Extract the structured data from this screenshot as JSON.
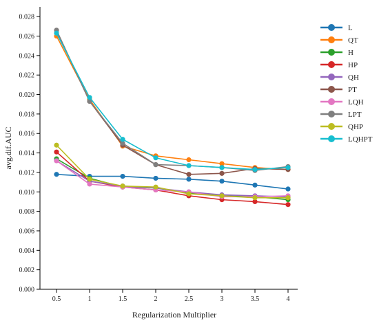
{
  "chart_data": {
    "type": "line",
    "title": "",
    "xlabel": "Regularization Multiplier",
    "ylabel": "avg.dif.AUC",
    "categories": [
      "0.5",
      "1",
      "1.5",
      "2",
      "2.5",
      "3",
      "3.5",
      "4"
    ],
    "ylim": [
      0,
      0.029
    ],
    "yticks": [
      "0.000",
      "0.002",
      "0.004",
      "0.006",
      "0.008",
      "0.010",
      "0.012",
      "0.014",
      "0.016",
      "0.018",
      "0.020",
      "0.022",
      "0.024",
      "0.026",
      "0.028"
    ],
    "grid": false,
    "legend_position": "right",
    "series": [
      {
        "name": "L",
        "color": "#1f77b4",
        "values": [
          0.0118,
          0.0116,
          0.0116,
          0.0114,
          0.0113,
          0.0111,
          0.0107,
          0.0103
        ]
      },
      {
        "name": "QT",
        "color": "#ff7f0e",
        "values": [
          0.026,
          0.0195,
          0.0147,
          0.0137,
          0.0133,
          0.0129,
          0.0125,
          0.0123
        ]
      },
      {
        "name": "H",
        "color": "#2ca02c",
        "values": [
          0.0134,
          0.0114,
          0.0105,
          0.0104,
          0.0099,
          0.0096,
          0.0095,
          0.0092
        ]
      },
      {
        "name": "HP",
        "color": "#d62728",
        "values": [
          0.0141,
          0.0111,
          0.0105,
          0.0102,
          0.0096,
          0.0092,
          0.009,
          0.0087
        ]
      },
      {
        "name": "QH",
        "color": "#9467bd",
        "values": [
          0.0132,
          0.0111,
          0.0106,
          0.0104,
          0.01,
          0.0097,
          0.0096,
          0.0095
        ]
      },
      {
        "name": "PT",
        "color": "#8c564b",
        "values": [
          0.0266,
          0.0193,
          0.0148,
          0.0128,
          0.0118,
          0.0119,
          0.0124,
          0.0123
        ]
      },
      {
        "name": "LQH",
        "color": "#e377c2",
        "values": [
          0.0132,
          0.0108,
          0.0105,
          0.0102,
          0.01,
          0.0095,
          0.0095,
          0.0096
        ]
      },
      {
        "name": "LPT",
        "color": "#7f7f7f",
        "values": [
          0.0266,
          0.0193,
          0.015,
          0.0128,
          0.0127,
          0.0125,
          0.0122,
          0.0126
        ]
      },
      {
        "name": "QHP",
        "color": "#bcbd22",
        "values": [
          0.0148,
          0.0113,
          0.0106,
          0.0105,
          0.0098,
          0.0096,
          0.0094,
          0.0094
        ]
      },
      {
        "name": "LQHPT",
        "color": "#17becf",
        "values": [
          0.0263,
          0.0197,
          0.0154,
          0.0135,
          0.0127,
          0.0125,
          0.0123,
          0.0125
        ]
      }
    ]
  }
}
